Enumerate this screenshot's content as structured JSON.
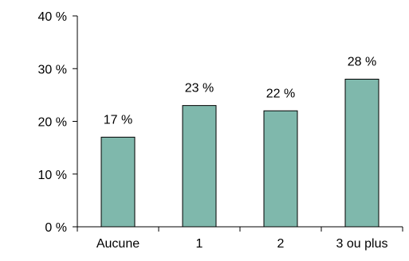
{
  "chart_data": {
    "type": "bar",
    "categories": [
      "Aucune",
      "1",
      "2",
      "3 ou plus"
    ],
    "values": [
      17,
      23,
      22,
      28
    ],
    "data_labels": [
      "17 %",
      "23 %",
      "22 %",
      "28 %"
    ],
    "yticks": [
      0,
      10,
      20,
      30,
      40
    ],
    "ytick_labels": [
      "0 %",
      "10 %",
      "20 %",
      "30 %",
      "40 %"
    ],
    "ylim": [
      0,
      40
    ],
    "grid": false,
    "bar_color": "#7fb8ac",
    "bar_edge_color": "#000000"
  }
}
